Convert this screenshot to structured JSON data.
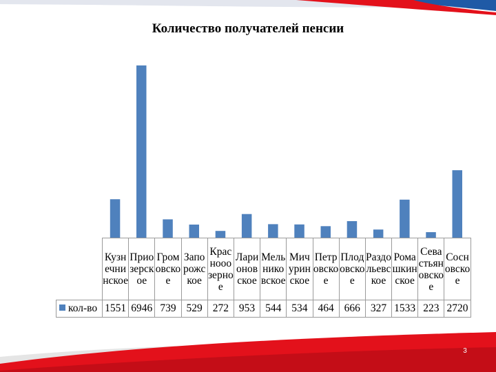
{
  "page_number": "3",
  "colors": {
    "bar": "#4f81bd",
    "accent_red": "#e3111b",
    "accent_blue": "#1f5aa6"
  },
  "chart_data": {
    "type": "bar",
    "title": "Количество получателей пенсии",
    "categories": [
      "Кузнечнинское",
      "Приозерское",
      "Громовское",
      "Запорожское",
      "Краснооозерное",
      "Ларионовское",
      "Мельниковское",
      "Мичуринское",
      "Петровское",
      "Плодовское",
      "Раздольевское",
      "Ромашкинское",
      "Севастьяновское",
      "Сосновское"
    ],
    "series": [
      {
        "name": "кол-во",
        "values": [
          1551,
          6946,
          739,
          529,
          272,
          953,
          544,
          534,
          464,
          666,
          327,
          1533,
          223,
          2720
        ]
      }
    ],
    "ylim": [
      0,
      7000
    ],
    "grid": false,
    "legend": "data-table"
  }
}
